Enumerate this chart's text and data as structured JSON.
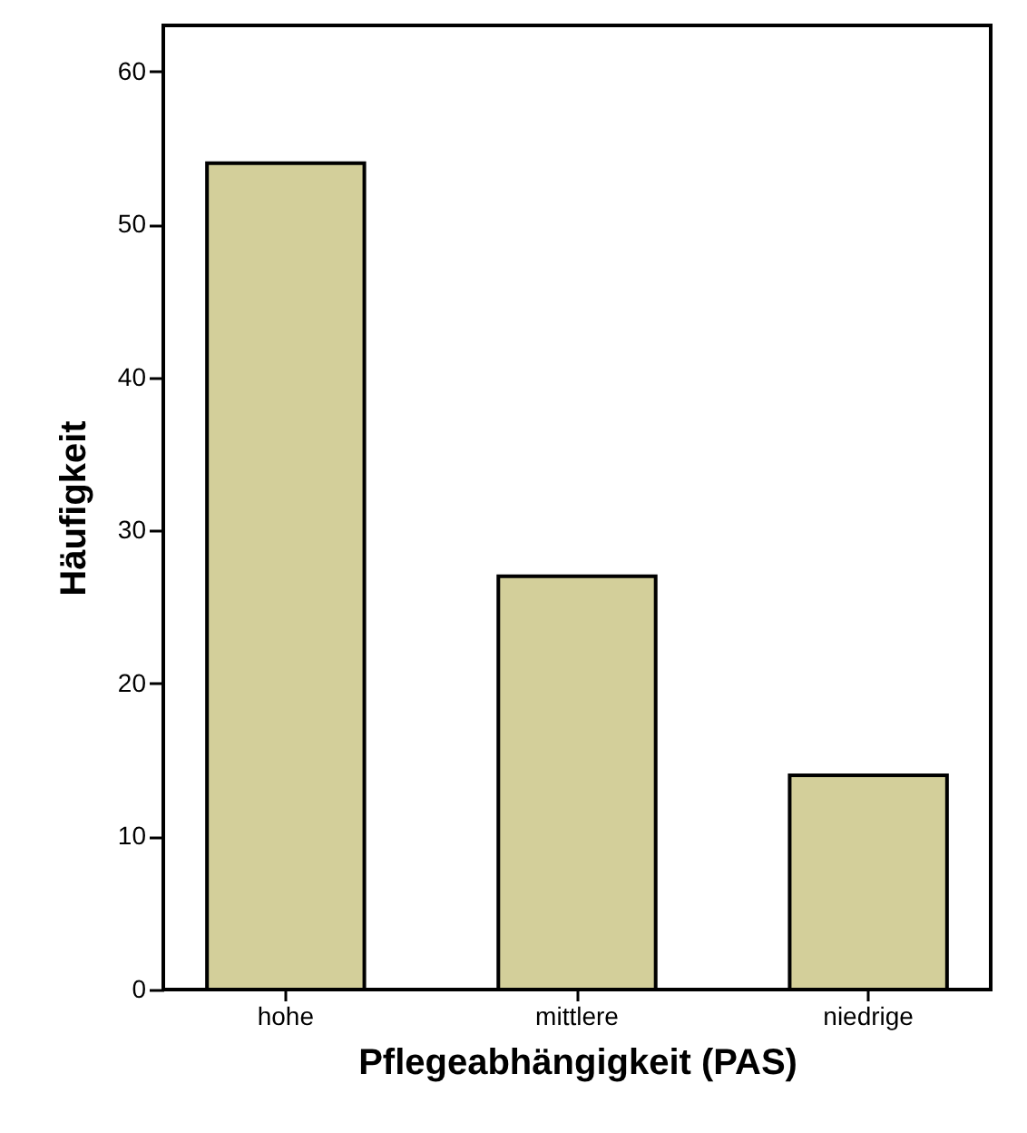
{
  "chart_data": {
    "type": "bar",
    "xlabel": "Pflegeabhängigkeit (PAS)",
    "ylabel": "Häufigkeit",
    "categories": [
      "hohe",
      "mittlere",
      "niedrige"
    ],
    "values": [
      54,
      27,
      14
    ],
    "color": "#d3cf9a",
    "ylim": [
      0,
      63
    ],
    "yticks": [
      0,
      10,
      20,
      30,
      40,
      50,
      60
    ],
    "grid": false
  }
}
